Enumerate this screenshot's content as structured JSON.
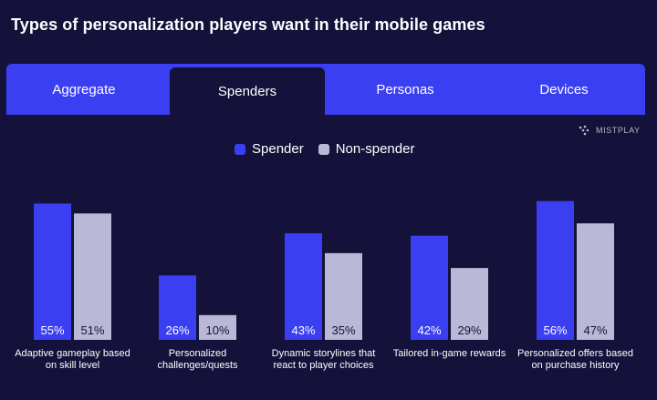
{
  "title": "Types of personalization players want in their mobile games",
  "tabs": [
    {
      "label": "Aggregate",
      "active": false
    },
    {
      "label": "Spenders",
      "active": true
    },
    {
      "label": "Personas",
      "active": false
    },
    {
      "label": "Devices",
      "active": false
    }
  ],
  "brand": {
    "name": "MISTPLAY",
    "icon": "mistplay-logo-icon"
  },
  "colors": {
    "background": "#14113a",
    "tab_bar": "#3b3ff2",
    "spender": "#3b3ff2",
    "non_spender": "#b9b8d6"
  },
  "chart_data": {
    "type": "bar",
    "categories": [
      "Adaptive gameplay based on skill level",
      "Personalized challenges/quests",
      "Dynamic storylines that react to player choices",
      "Tailored in-game rewards",
      "Personalized offers based on purchase history"
    ],
    "series": [
      {
        "name": "Spender",
        "values": [
          55,
          26,
          43,
          42,
          56
        ]
      },
      {
        "name": "Non-spender",
        "values": [
          51,
          10,
          35,
          29,
          47
        ]
      }
    ],
    "value_suffix": "%",
    "ylim": [
      0,
      100
    ],
    "grid": false,
    "legend": "top-center"
  }
}
